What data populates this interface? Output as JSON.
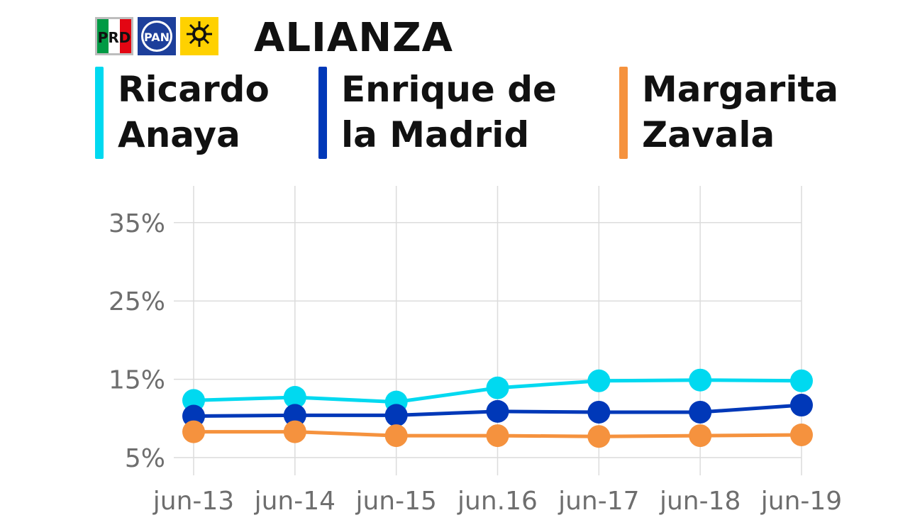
{
  "header": {
    "title": "ALIANZA",
    "logos": [
      {
        "icon": "prd-logo",
        "text": "PRD",
        "color": "#bdbdbd"
      },
      {
        "icon": "pan-logo",
        "text": "PAN",
        "color": "#1d3f9b"
      },
      {
        "icon": "mc-logo",
        "text": "",
        "color": "#ffd100"
      }
    ]
  },
  "legend": [
    {
      "line1": "Ricardo",
      "line2": "Anaya",
      "color": "#00d9f0"
    },
    {
      "line1": "Enrique de",
      "line2": "la Madrid",
      "color": "#0038b8"
    },
    {
      "line1": "Margarita",
      "line2": "Zavala",
      "color": "#f5923e"
    }
  ],
  "chart_data": {
    "type": "line",
    "categories": [
      "jun-13",
      "jun-14",
      "jun-15",
      "jun.16",
      "jun-17",
      "jun-18",
      "jun-19"
    ],
    "y_ticks": [
      5,
      15,
      25,
      35
    ],
    "y_tick_suffix": "%",
    "ylim": [
      3,
      40
    ],
    "grid": true,
    "legend_position": "top",
    "series": [
      {
        "name": "Ricardo Anaya",
        "color": "#00d9f0",
        "values": [
          12.3,
          12.7,
          12.1,
          13.9,
          14.8,
          14.9,
          14.8
        ]
      },
      {
        "name": "Enrique de la Madrid",
        "color": "#0038b8",
        "values": [
          10.3,
          10.4,
          10.4,
          10.9,
          10.8,
          10.8,
          11.7
        ]
      },
      {
        "name": "Margarita Zavala",
        "color": "#f5923e",
        "values": [
          8.3,
          8.3,
          7.8,
          7.8,
          7.7,
          7.8,
          7.9
        ]
      }
    ]
  }
}
